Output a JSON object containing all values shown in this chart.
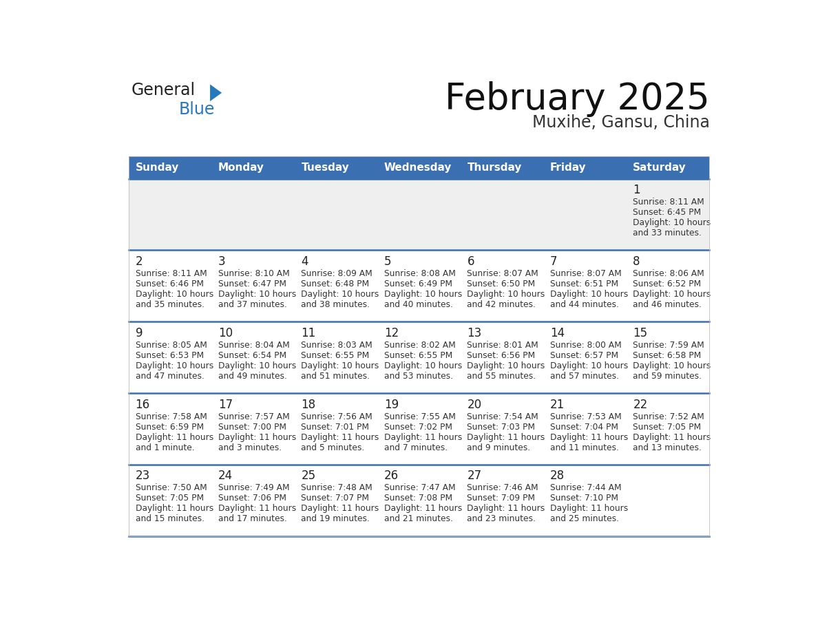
{
  "title": "February 2025",
  "subtitle": "Muxihe, Gansu, China",
  "days_of_week": [
    "Sunday",
    "Monday",
    "Tuesday",
    "Wednesday",
    "Thursday",
    "Friday",
    "Saturday"
  ],
  "header_bg": "#3A70B2",
  "header_text": "#FFFFFF",
  "row1_bg": "#EFEFEF",
  "row_bg": "#FFFFFF",
  "separator_color": "#3A6FB0",
  "day_num_color": "#222222",
  "text_color": "#333333",
  "logo_black": "#222222",
  "logo_blue": "#2878BE",
  "triangle_color": "#2878BE",
  "calendar": [
    [
      {
        "day": "",
        "lines": []
      },
      {
        "day": "",
        "lines": []
      },
      {
        "day": "",
        "lines": []
      },
      {
        "day": "",
        "lines": []
      },
      {
        "day": "",
        "lines": []
      },
      {
        "day": "",
        "lines": []
      },
      {
        "day": "1",
        "lines": [
          "Sunrise: 8:11 AM",
          "Sunset: 6:45 PM",
          "Daylight: 10 hours",
          "and 33 minutes."
        ]
      }
    ],
    [
      {
        "day": "2",
        "lines": [
          "Sunrise: 8:11 AM",
          "Sunset: 6:46 PM",
          "Daylight: 10 hours",
          "and 35 minutes."
        ]
      },
      {
        "day": "3",
        "lines": [
          "Sunrise: 8:10 AM",
          "Sunset: 6:47 PM",
          "Daylight: 10 hours",
          "and 37 minutes."
        ]
      },
      {
        "day": "4",
        "lines": [
          "Sunrise: 8:09 AM",
          "Sunset: 6:48 PM",
          "Daylight: 10 hours",
          "and 38 minutes."
        ]
      },
      {
        "day": "5",
        "lines": [
          "Sunrise: 8:08 AM",
          "Sunset: 6:49 PM",
          "Daylight: 10 hours",
          "and 40 minutes."
        ]
      },
      {
        "day": "6",
        "lines": [
          "Sunrise: 8:07 AM",
          "Sunset: 6:50 PM",
          "Daylight: 10 hours",
          "and 42 minutes."
        ]
      },
      {
        "day": "7",
        "lines": [
          "Sunrise: 8:07 AM",
          "Sunset: 6:51 PM",
          "Daylight: 10 hours",
          "and 44 minutes."
        ]
      },
      {
        "day": "8",
        "lines": [
          "Sunrise: 8:06 AM",
          "Sunset: 6:52 PM",
          "Daylight: 10 hours",
          "and 46 minutes."
        ]
      }
    ],
    [
      {
        "day": "9",
        "lines": [
          "Sunrise: 8:05 AM",
          "Sunset: 6:53 PM",
          "Daylight: 10 hours",
          "and 47 minutes."
        ]
      },
      {
        "day": "10",
        "lines": [
          "Sunrise: 8:04 AM",
          "Sunset: 6:54 PM",
          "Daylight: 10 hours",
          "and 49 minutes."
        ]
      },
      {
        "day": "11",
        "lines": [
          "Sunrise: 8:03 AM",
          "Sunset: 6:55 PM",
          "Daylight: 10 hours",
          "and 51 minutes."
        ]
      },
      {
        "day": "12",
        "lines": [
          "Sunrise: 8:02 AM",
          "Sunset: 6:55 PM",
          "Daylight: 10 hours",
          "and 53 minutes."
        ]
      },
      {
        "day": "13",
        "lines": [
          "Sunrise: 8:01 AM",
          "Sunset: 6:56 PM",
          "Daylight: 10 hours",
          "and 55 minutes."
        ]
      },
      {
        "day": "14",
        "lines": [
          "Sunrise: 8:00 AM",
          "Sunset: 6:57 PM",
          "Daylight: 10 hours",
          "and 57 minutes."
        ]
      },
      {
        "day": "15",
        "lines": [
          "Sunrise: 7:59 AM",
          "Sunset: 6:58 PM",
          "Daylight: 10 hours",
          "and 59 minutes."
        ]
      }
    ],
    [
      {
        "day": "16",
        "lines": [
          "Sunrise: 7:58 AM",
          "Sunset: 6:59 PM",
          "Daylight: 11 hours",
          "and 1 minute."
        ]
      },
      {
        "day": "17",
        "lines": [
          "Sunrise: 7:57 AM",
          "Sunset: 7:00 PM",
          "Daylight: 11 hours",
          "and 3 minutes."
        ]
      },
      {
        "day": "18",
        "lines": [
          "Sunrise: 7:56 AM",
          "Sunset: 7:01 PM",
          "Daylight: 11 hours",
          "and 5 minutes."
        ]
      },
      {
        "day": "19",
        "lines": [
          "Sunrise: 7:55 AM",
          "Sunset: 7:02 PM",
          "Daylight: 11 hours",
          "and 7 minutes."
        ]
      },
      {
        "day": "20",
        "lines": [
          "Sunrise: 7:54 AM",
          "Sunset: 7:03 PM",
          "Daylight: 11 hours",
          "and 9 minutes."
        ]
      },
      {
        "day": "21",
        "lines": [
          "Sunrise: 7:53 AM",
          "Sunset: 7:04 PM",
          "Daylight: 11 hours",
          "and 11 minutes."
        ]
      },
      {
        "day": "22",
        "lines": [
          "Sunrise: 7:52 AM",
          "Sunset: 7:05 PM",
          "Daylight: 11 hours",
          "and 13 minutes."
        ]
      }
    ],
    [
      {
        "day": "23",
        "lines": [
          "Sunrise: 7:50 AM",
          "Sunset: 7:05 PM",
          "Daylight: 11 hours",
          "and 15 minutes."
        ]
      },
      {
        "day": "24",
        "lines": [
          "Sunrise: 7:49 AM",
          "Sunset: 7:06 PM",
          "Daylight: 11 hours",
          "and 17 minutes."
        ]
      },
      {
        "day": "25",
        "lines": [
          "Sunrise: 7:48 AM",
          "Sunset: 7:07 PM",
          "Daylight: 11 hours",
          "and 19 minutes."
        ]
      },
      {
        "day": "26",
        "lines": [
          "Sunrise: 7:47 AM",
          "Sunset: 7:08 PM",
          "Daylight: 11 hours",
          "and 21 minutes."
        ]
      },
      {
        "day": "27",
        "lines": [
          "Sunrise: 7:46 AM",
          "Sunset: 7:09 PM",
          "Daylight: 11 hours",
          "and 23 minutes."
        ]
      },
      {
        "day": "28",
        "lines": [
          "Sunrise: 7:44 AM",
          "Sunset: 7:10 PM",
          "Daylight: 11 hours",
          "and 25 minutes."
        ]
      },
      {
        "day": "",
        "lines": []
      }
    ]
  ]
}
